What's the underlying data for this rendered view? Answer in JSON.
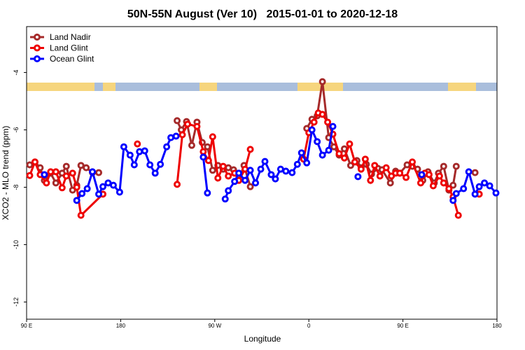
{
  "chart_data": {
    "type": "line",
    "title": "50N-55N August (Ver 10)   2015-01-01 to 2020-12-18",
    "x_label": "Longitude",
    "y_label": "XCO2 - MLO trend (ppm)",
    "xlim": [
      90,
      540
    ],
    "ylim": [
      -12.6,
      -2.4
    ],
    "xticks": [
      {
        "value": 90,
        "label": "90 E"
      },
      180,
      {
        "value": 270,
        "label": "90 W"
      },
      {
        "value": 360,
        "label": "0"
      },
      {
        "value": 450,
        "label": "90 E"
      },
      {
        "value": 540,
        "label": "180"
      }
    ],
    "yticks": [
      -4,
      -6,
      -8,
      -10,
      -12
    ],
    "legend": "top-left",
    "series": [
      {
        "name": "Land Nadir",
        "color": "#a52a2a",
        "x": [
          93,
          98,
          103,
          107,
          113,
          118,
          124,
          128,
          134,
          138,
          142,
          147,
          153,
          159,
          null,
          234,
          238,
          243,
          248,
          253,
          258,
          263,
          268,
          273,
          278,
          283,
          288,
          293,
          298,
          304,
          null,
          358,
          363,
          368,
          373,
          379,
          384,
          389,
          394,
          400,
          406,
          410,
          415,
          420,
          426,
          430,
          438,
          443,
          447,
          454,
          459,
          464,
          469,
          474,
          480,
          484,
          489,
          494,
          498,
          501,
          null,
          519
        ],
        "values": [
          -7.22,
          -7.12,
          -7.32,
          -7.76,
          -7.51,
          -7.85,
          -7.51,
          -7.27,
          -8.1,
          -7.93,
          -7.24,
          -7.32,
          -7.49,
          -7.49,
          null,
          -5.68,
          -6.0,
          -5.71,
          -6.54,
          -5.73,
          -6.44,
          -6.59,
          -7.41,
          -7.24,
          -7.37,
          -7.32,
          -7.39,
          -7.76,
          -7.24,
          -7.98,
          null,
          -5.95,
          -5.63,
          -5.51,
          -4.32,
          -6.27,
          -6.59,
          -6.88,
          -6.66,
          -7.24,
          -7.07,
          -7.32,
          -7.2,
          -7.54,
          -7.34,
          -7.39,
          -7.85,
          -7.44,
          -7.51,
          -7.22,
          -7.27,
          -7.37,
          -7.76,
          -7.46,
          -7.85,
          -7.51,
          -7.27,
          -8.1,
          -7.93,
          -7.27,
          null,
          -7.49
        ]
      },
      {
        "name": "Land Glint",
        "color": "#ee0000",
        "x": [
          93,
          98,
          103,
          109,
          113,
          118,
          124,
          128,
          134,
          138,
          142,
          163,
          null,
          196,
          null,
          234,
          239,
          244,
          253,
          259,
          264,
          268,
          273,
          278,
          283,
          289,
          293,
          299,
          304,
          null,
          355,
          360,
          365,
          369,
          373,
          378,
          383,
          389,
          394,
          399,
          404,
          410,
          414,
          419,
          423,
          428,
          434,
          439,
          443,
          447,
          453,
          459,
          467,
          471,
          475,
          479,
          485,
          489,
          494,
          498,
          503,
          null,
          523
        ],
        "values": [
          -7.59,
          -7.12,
          -7.56,
          -7.85,
          -7.46,
          -7.46,
          -8.02,
          -7.61,
          -7.51,
          -8.0,
          -8.98,
          -8.24,
          null,
          -6.49,
          null,
          -7.9,
          -6.17,
          -5.8,
          -5.88,
          -6.76,
          -7.07,
          -6.24,
          -7.68,
          -7.27,
          -7.61,
          -7.51,
          -7.76,
          -7.37,
          -6.68,
          null,
          -7.02,
          -6.1,
          -5.73,
          -5.41,
          -5.46,
          -5.73,
          -6.15,
          -6.83,
          -6.98,
          -6.49,
          -7.12,
          -7.37,
          -7.02,
          -7.76,
          -7.24,
          -7.61,
          -7.32,
          -7.61,
          -7.51,
          -7.51,
          -7.66,
          -7.12,
          -7.85,
          -7.51,
          -7.56,
          -7.95,
          -7.61,
          -7.85,
          -8.05,
          -8.34,
          -8.98,
          null,
          -8.24
        ]
      },
      {
        "name": "Ocean Glint",
        "color": "#0000ff",
        "x": [
          107,
          null,
          138,
          143,
          148,
          153,
          159,
          163,
          168,
          173,
          179,
          183,
          189,
          193,
          198,
          203,
          208,
          213,
          218,
          224,
          228,
          233,
          null,
          259,
          263,
          null,
          280,
          283,
          289,
          293,
          299,
          304,
          309,
          314,
          318,
          324,
          328,
          333,
          338,
          344,
          349,
          353,
          358,
          363,
          368,
          373,
          379,
          383,
          null,
          407,
          null,
          468,
          null,
          498,
          501,
          508,
          513,
          519,
          523,
          528,
          533,
          539
        ],
        "values": [
          -7.56,
          null,
          -8.46,
          -8.22,
          -8.05,
          -7.46,
          -8.24,
          -7.98,
          -7.85,
          -7.93,
          -8.17,
          -6.59,
          -6.88,
          -7.22,
          -6.76,
          -6.73,
          -7.22,
          -7.51,
          -7.2,
          -6.59,
          -6.27,
          -6.22,
          null,
          -6.95,
          -8.2,
          null,
          -8.41,
          -8.12,
          -7.8,
          -7.51,
          -7.76,
          -7.41,
          -7.85,
          -7.37,
          -7.1,
          -7.56,
          -7.71,
          -7.37,
          -7.44,
          -7.49,
          -7.2,
          -6.8,
          -7.15,
          -6.0,
          -6.41,
          -6.88,
          -6.71,
          -5.88,
          null,
          -7.63,
          null,
          -7.56,
          null,
          -8.46,
          -8.22,
          -8.05,
          -7.46,
          -8.24,
          -7.98,
          -7.85,
          -7.95,
          -8.2
        ]
      }
    ]
  }
}
